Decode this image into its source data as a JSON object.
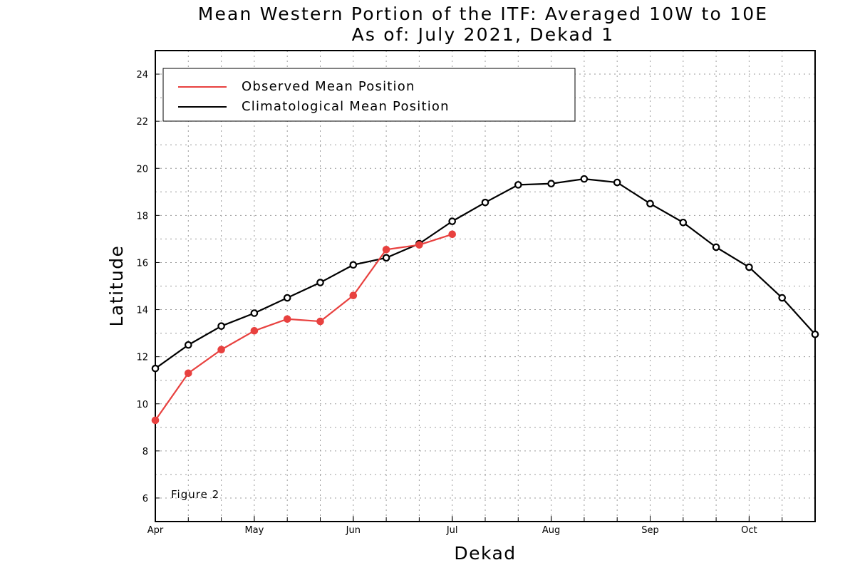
{
  "chart_data": {
    "type": "line",
    "title": "Mean Western Portion of the ITF: Averaged 10W to 10E",
    "subtitle": "As of: July 2021, Dekad 1",
    "xlabel": "Dekad",
    "ylabel": "Latitude",
    "x_tick_labels": [
      "Apr",
      "May",
      "Jun",
      "Jul",
      "Aug",
      "Sep",
      "Oct"
    ],
    "x_tick_dekads": [
      0,
      3,
      6,
      9,
      12,
      15,
      18
    ],
    "xlim": [
      0,
      20
    ],
    "ylim": [
      5,
      25
    ],
    "y_ticks": [
      6,
      8,
      10,
      12,
      14,
      16,
      18,
      20,
      22,
      24
    ],
    "grid": true,
    "legend_position": "top-left",
    "annotation": "Figure 2",
    "series": [
      {
        "name": "Observed Mean Position",
        "color": "#e8413f",
        "marker": "filled-circle",
        "values": [
          9.3,
          11.3,
          12.3,
          13.1,
          13.6,
          13.5,
          14.6,
          16.55,
          16.75,
          17.2
        ]
      },
      {
        "name": "Climatological Mean Position",
        "color": "#000000",
        "marker": "open-circle",
        "values": [
          11.5,
          12.5,
          13.3,
          13.85,
          14.5,
          15.15,
          15.9,
          16.2,
          16.8,
          17.75,
          18.55,
          19.3,
          19.35,
          19.55,
          19.4,
          18.5,
          17.7,
          16.65,
          15.8,
          14.5,
          12.95
        ]
      }
    ]
  }
}
